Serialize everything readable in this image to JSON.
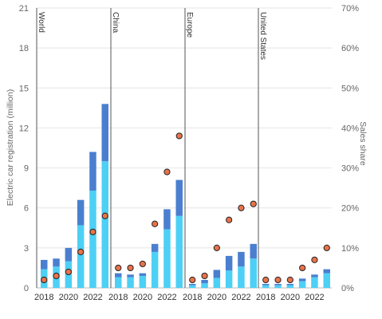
{
  "chart_data": {
    "type": "bar",
    "stacked": true,
    "ylabel": "Electric car registration (million)",
    "y2label": "Sales share",
    "ylim": [
      0,
      21
    ],
    "yticks": [
      0,
      3,
      6,
      9,
      12,
      15,
      18,
      21
    ],
    "y2lim": [
      0,
      70
    ],
    "y2ticks": [
      "0%",
      "10%",
      "20%",
      "30%",
      "40%",
      "50%",
      "60%",
      "70%"
    ],
    "grid": true,
    "colors": {
      "bev": "#4dd0f5",
      "phev": "#4a7fd0",
      "marker": "#e8734a",
      "marker_edge": "#222222",
      "divider": "#555555",
      "grid": "#e4e4e4"
    },
    "panels": [
      {
        "name": "World",
        "years": [
          2018,
          2019,
          2020,
          2021,
          2022,
          2023
        ],
        "xticks": [
          "2018",
          "2020",
          "2022"
        ],
        "bev": [
          1.4,
          1.6,
          2.0,
          4.7,
          7.3,
          9.5
        ],
        "phev": [
          0.7,
          0.6,
          1.0,
          1.9,
          2.9,
          4.3
        ],
        "share": [
          2,
          3,
          4,
          9,
          14,
          18
        ]
      },
      {
        "name": "China",
        "years": [
          2018,
          2019,
          2020,
          2021,
          2022,
          2023
        ],
        "xticks": [
          "2018",
          "2020",
          "2022"
        ],
        "bev": [
          0.8,
          0.8,
          0.9,
          2.7,
          4.4,
          5.4
        ],
        "phev": [
          0.3,
          0.2,
          0.2,
          0.6,
          1.5,
          2.7
        ],
        "share": [
          5,
          5,
          6,
          16,
          29,
          38
        ]
      },
      {
        "name": "Europe",
        "years": [
          2018,
          2019,
          2020,
          2021,
          2022,
          2023
        ],
        "xticks": [
          "2018",
          "2020",
          "2022"
        ],
        "bev": [
          0.2,
          0.35,
          0.75,
          1.3,
          1.6,
          2.2
        ],
        "phev": [
          0.1,
          0.25,
          0.6,
          1.1,
          1.1,
          1.1
        ],
        "share": [
          2,
          3,
          10,
          17,
          20,
          21
        ]
      },
      {
        "name": "United States",
        "years": [
          2018,
          2019,
          2020,
          2021,
          2022,
          2023
        ],
        "xticks": [
          "2018",
          "2020",
          "2022"
        ],
        "bev": [
          0.2,
          0.2,
          0.2,
          0.5,
          0.8,
          1.1
        ],
        "phev": [
          0.1,
          0.1,
          0.1,
          0.2,
          0.2,
          0.3
        ],
        "share": [
          2,
          2,
          2,
          5,
          7,
          10
        ]
      }
    ]
  }
}
